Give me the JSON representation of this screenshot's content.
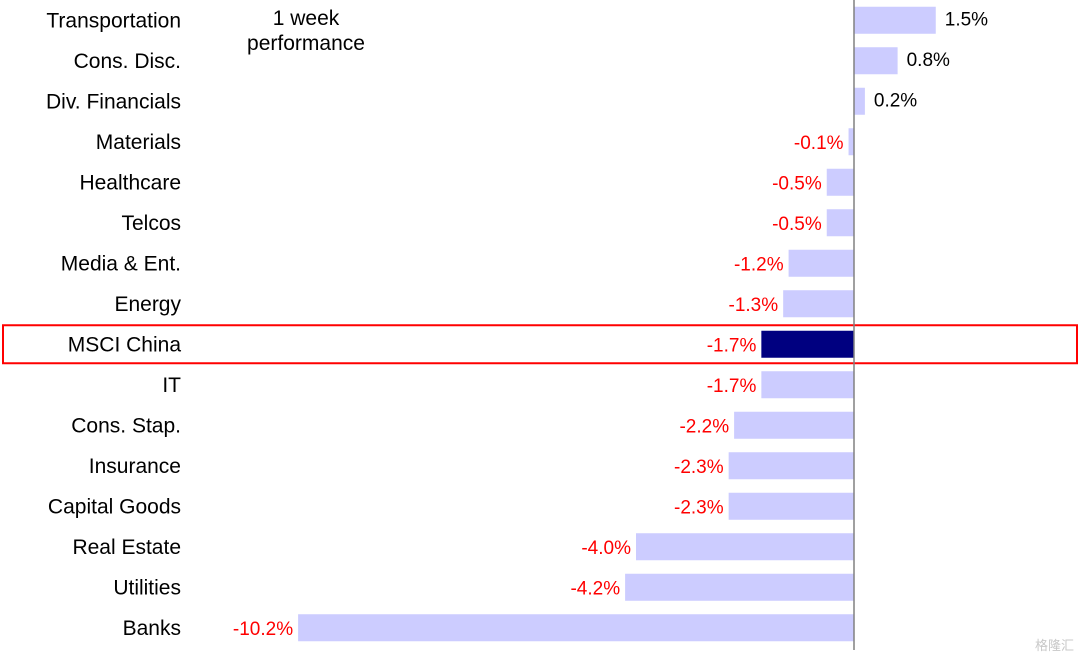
{
  "chart_data": {
    "type": "bar",
    "orientation": "horizontal",
    "title": "1 week\nperformance",
    "categories": [
      "Transportation",
      "Cons. Disc.",
      "Div. Financials",
      "Materials",
      "Healthcare",
      "Telcos",
      "Media & Ent.",
      "Energy",
      "MSCI China",
      "IT",
      "Cons. Stap.",
      "Insurance",
      "Capital Goods",
      "Real Estate",
      "Utilities",
      "Banks"
    ],
    "values": [
      1.5,
      0.8,
      0.2,
      -0.1,
      -0.5,
      -0.5,
      -1.2,
      -1.3,
      -1.7,
      -1.7,
      -2.2,
      -2.3,
      -2.3,
      -4.0,
      -4.2,
      -10.2
    ],
    "value_labels": [
      "1.5%",
      "0.8%",
      "0.2%",
      "-0.1%",
      "-0.5%",
      "-0.5%",
      "-1.2%",
      "-1.3%",
      "-1.7%",
      "-1.7%",
      "-2.2%",
      "-2.3%",
      "-2.3%",
      "-4.0%",
      "-4.2%",
      "-10.2%"
    ],
    "highlight_category": "MSCI China",
    "xlim": [
      -10.2,
      1.5
    ],
    "grid": false,
    "legend": "none",
    "colors": {
      "bar": "#ccccff",
      "highlight_bar": "#000080",
      "negative_label": "#ff0000",
      "positive_label": "#000000",
      "highlight_box": "#ff0000",
      "axis": "#808080"
    }
  },
  "watermark": {
    "text": "格隆汇"
  }
}
